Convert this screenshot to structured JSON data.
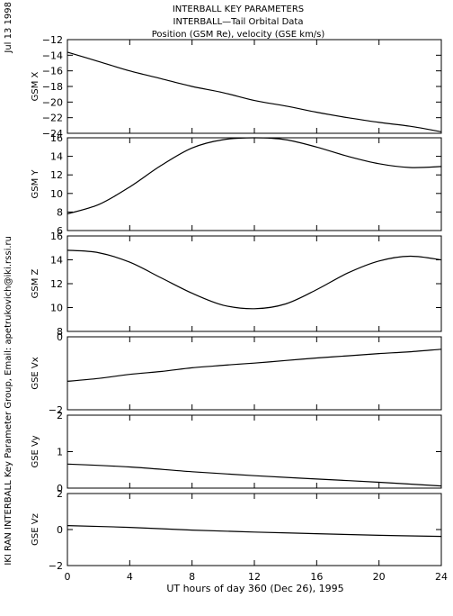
{
  "header": {
    "title_line1": "INTERBALL KEY PARAMETERS",
    "title_line2": "INTERBALL—Tail Orbital Data",
    "title_line3": "Position (GSM Re), velocity (GSE km/s)"
  },
  "side": {
    "date": "Jul 13 1998",
    "credit": "IKI RAN INTERBALL Key Parameter Group, Email: apetrukovich@iki.rssi.ru"
  },
  "chart_data": [
    {
      "type": "line",
      "ylabel": "GSM X",
      "ylim": [
        -24,
        -12
      ],
      "yticks": [
        -12,
        -14,
        -16,
        -18,
        -20,
        -22,
        -24
      ],
      "x": [
        0,
        2,
        4,
        6,
        8,
        10,
        12,
        14,
        16,
        18,
        20,
        22,
        24
      ],
      "values": [
        -13.6,
        -14.8,
        -16.0,
        -17.0,
        -18.0,
        -18.8,
        -19.8,
        -20.5,
        -21.3,
        -22.0,
        -22.6,
        -23.1,
        -23.8
      ]
    },
    {
      "type": "line",
      "ylabel": "GSM Y",
      "ylim": [
        6,
        16
      ],
      "yticks": [
        6,
        8,
        10,
        12,
        14,
        16
      ],
      "x": [
        0,
        2,
        4,
        6,
        8,
        10,
        12,
        14,
        16,
        18,
        20,
        22,
        24
      ],
      "values": [
        7.8,
        8.8,
        10.7,
        13.0,
        14.9,
        15.8,
        16.0,
        15.8,
        15.0,
        14.0,
        13.2,
        12.8,
        12.9
      ]
    },
    {
      "type": "line",
      "ylabel": "GSM Z",
      "ylim": [
        8,
        16
      ],
      "yticks": [
        8,
        10,
        12,
        14,
        16
      ],
      "x": [
        0,
        2,
        4,
        6,
        8,
        10,
        12,
        14,
        16,
        18,
        20,
        22,
        24
      ],
      "values": [
        14.8,
        14.6,
        13.8,
        12.5,
        11.2,
        10.2,
        9.9,
        10.3,
        11.5,
        12.9,
        13.9,
        14.3,
        14.0
      ]
    },
    {
      "type": "line",
      "ylabel": "GSE Vx",
      "ylim": [
        -2,
        0
      ],
      "yticks": [
        0,
        -2
      ],
      "x": [
        0,
        2,
        4,
        6,
        8,
        10,
        12,
        14,
        16,
        18,
        20,
        22,
        24
      ],
      "values": [
        -1.22,
        -1.14,
        -1.03,
        -0.95,
        -0.85,
        -0.78,
        -0.72,
        -0.65,
        -0.58,
        -0.52,
        -0.46,
        -0.41,
        -0.34
      ]
    },
    {
      "type": "line",
      "ylabel": "GSE Vy",
      "ylim": [
        0,
        2
      ],
      "yticks": [
        2,
        1,
        0
      ],
      "x": [
        0,
        4,
        8,
        12,
        16,
        20,
        24
      ],
      "values": [
        0.66,
        0.58,
        0.45,
        0.34,
        0.25,
        0.16,
        0.06
      ]
    },
    {
      "type": "line",
      "ylabel": "GSE Vz",
      "ylim": [
        -2,
        2
      ],
      "yticks": [
        2,
        0,
        -2
      ],
      "x": [
        0,
        4,
        8,
        12,
        16,
        20,
        24
      ],
      "values": [
        0.22,
        0.12,
        -0.03,
        -0.14,
        -0.23,
        -0.32,
        -0.38
      ]
    }
  ],
  "xaxis": {
    "xlim": [
      0,
      24
    ],
    "ticks": [
      0,
      4,
      8,
      12,
      16,
      20,
      24
    ],
    "xlabel": "UT hours of day 360 (Dec 26), 1995"
  }
}
